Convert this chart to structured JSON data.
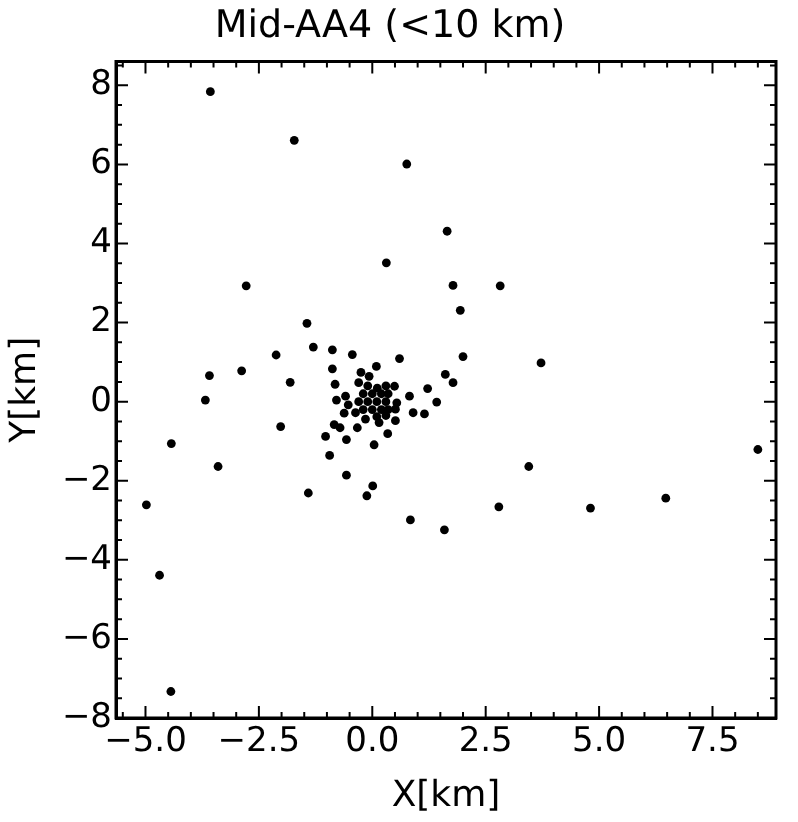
{
  "chart_data": {
    "type": "scatter",
    "title": "Mid-AA4 (<10 km)",
    "xlabel": "X[km]",
    "ylabel": "Y[km]",
    "xlim": [
      -5.65,
      8.9
    ],
    "ylim": [
      -8,
      8.6
    ],
    "xticks": [
      {
        "value": -5,
        "label": "−5.0"
      },
      {
        "value": -2.5,
        "label": "−2.5"
      },
      {
        "value": 0,
        "label": "0.0"
      },
      {
        "value": 2.5,
        "label": "2.5"
      },
      {
        "value": 5,
        "label": "5.0"
      },
      {
        "value": 7.5,
        "label": "7.5"
      }
    ],
    "yticks": [
      {
        "value": -8,
        "label": "−8"
      },
      {
        "value": -6,
        "label": "−6"
      },
      {
        "value": -4,
        "label": "−4"
      },
      {
        "value": -2,
        "label": "−2"
      },
      0,
      2,
      4,
      6,
      8
    ],
    "grid": false,
    "legend": false,
    "marker": "circle",
    "series": [
      {
        "color": "#000000",
        "x": [
          -3.57,
          -1.72,
          0.76,
          1.65,
          0.31,
          -2.78,
          1.78,
          2.82,
          1.94,
          -1.44,
          -2.12,
          -1.3,
          -0.88,
          -0.44,
          0.6,
          2.0,
          3.72,
          -3.59,
          -2.88,
          -1.81,
          -0.88,
          -0.82,
          -0.25,
          0.09,
          1.61,
          1.78,
          -3.68,
          -0.79,
          1.22,
          1.42,
          0.82,
          0.9,
          1.15,
          0.51,
          -4.43,
          -2.02,
          -1.03,
          -0.84,
          -0.71,
          -0.57,
          -0.33,
          0.34,
          0.04,
          -0.94,
          -3.4,
          3.45,
          8.5,
          -4.98,
          -0.57,
          0.01,
          -0.12,
          -1.41,
          2.79,
          4.81,
          6.47,
          0.84,
          1.59,
          -4.69,
          -4.44,
          -0.59,
          -0.53,
          -0.62,
          -0.3,
          -0.07,
          0.11,
          0.49,
          0.54,
          0.51,
          0.15,
          -0.15,
          -0.37,
          -0.3,
          -0.1,
          0.1,
          0.3,
          -0.2,
          0.0,
          0.2,
          0.35,
          -0.2,
          0.0,
          0.2,
          0.35,
          -0.1,
          0.3,
          0.1,
          0.3
        ],
        "values": [
          7.84,
          6.61,
          6.01,
          4.31,
          3.51,
          2.93,
          2.94,
          2.93,
          2.31,
          1.98,
          1.18,
          1.38,
          1.31,
          1.19,
          1.09,
          1.14,
          0.98,
          0.66,
          0.78,
          0.49,
          0.83,
          0.44,
          0.74,
          0.89,
          0.69,
          0.48,
          0.04,
          0.04,
          0.33,
          -0.01,
          0.14,
          -0.28,
          -0.31,
          -0.48,
          -1.06,
          -0.63,
          -0.88,
          -0.58,
          -0.66,
          -0.96,
          -0.66,
          -0.81,
          -1.09,
          -1.36,
          -1.64,
          -1.64,
          -1.21,
          -2.61,
          -1.86,
          -2.13,
          -2.38,
          -2.31,
          -2.66,
          -2.69,
          -2.44,
          -2.99,
          -3.24,
          -4.39,
          -7.33,
          0.14,
          -0.08,
          -0.29,
          0.48,
          0.64,
          0.34,
          0.39,
          -0.03,
          -0.19,
          -0.53,
          -0.44,
          -0.28,
          0.0,
          0.0,
          0.0,
          0.0,
          0.2,
          0.2,
          0.2,
          0.2,
          -0.2,
          -0.2,
          -0.2,
          -0.2,
          0.4,
          0.4,
          -0.38,
          -0.35
        ]
      }
    ]
  }
}
